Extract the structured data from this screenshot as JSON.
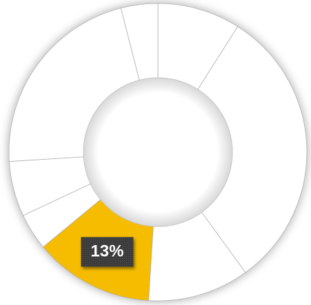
{
  "chart_data": {
    "type": "pie",
    "values": [
      9,
      31,
      11,
      13,
      4,
      6,
      22,
      4
    ],
    "value_labels": [
      null,
      null,
      null,
      "13%",
      null,
      null,
      null,
      null
    ],
    "colors": [
      "#ffffff",
      "#ffffff",
      "#ffffff",
      "#f5bc00",
      "#ffffff",
      "#ffffff",
      "#ffffff",
      "#ffffff"
    ]
  }
}
